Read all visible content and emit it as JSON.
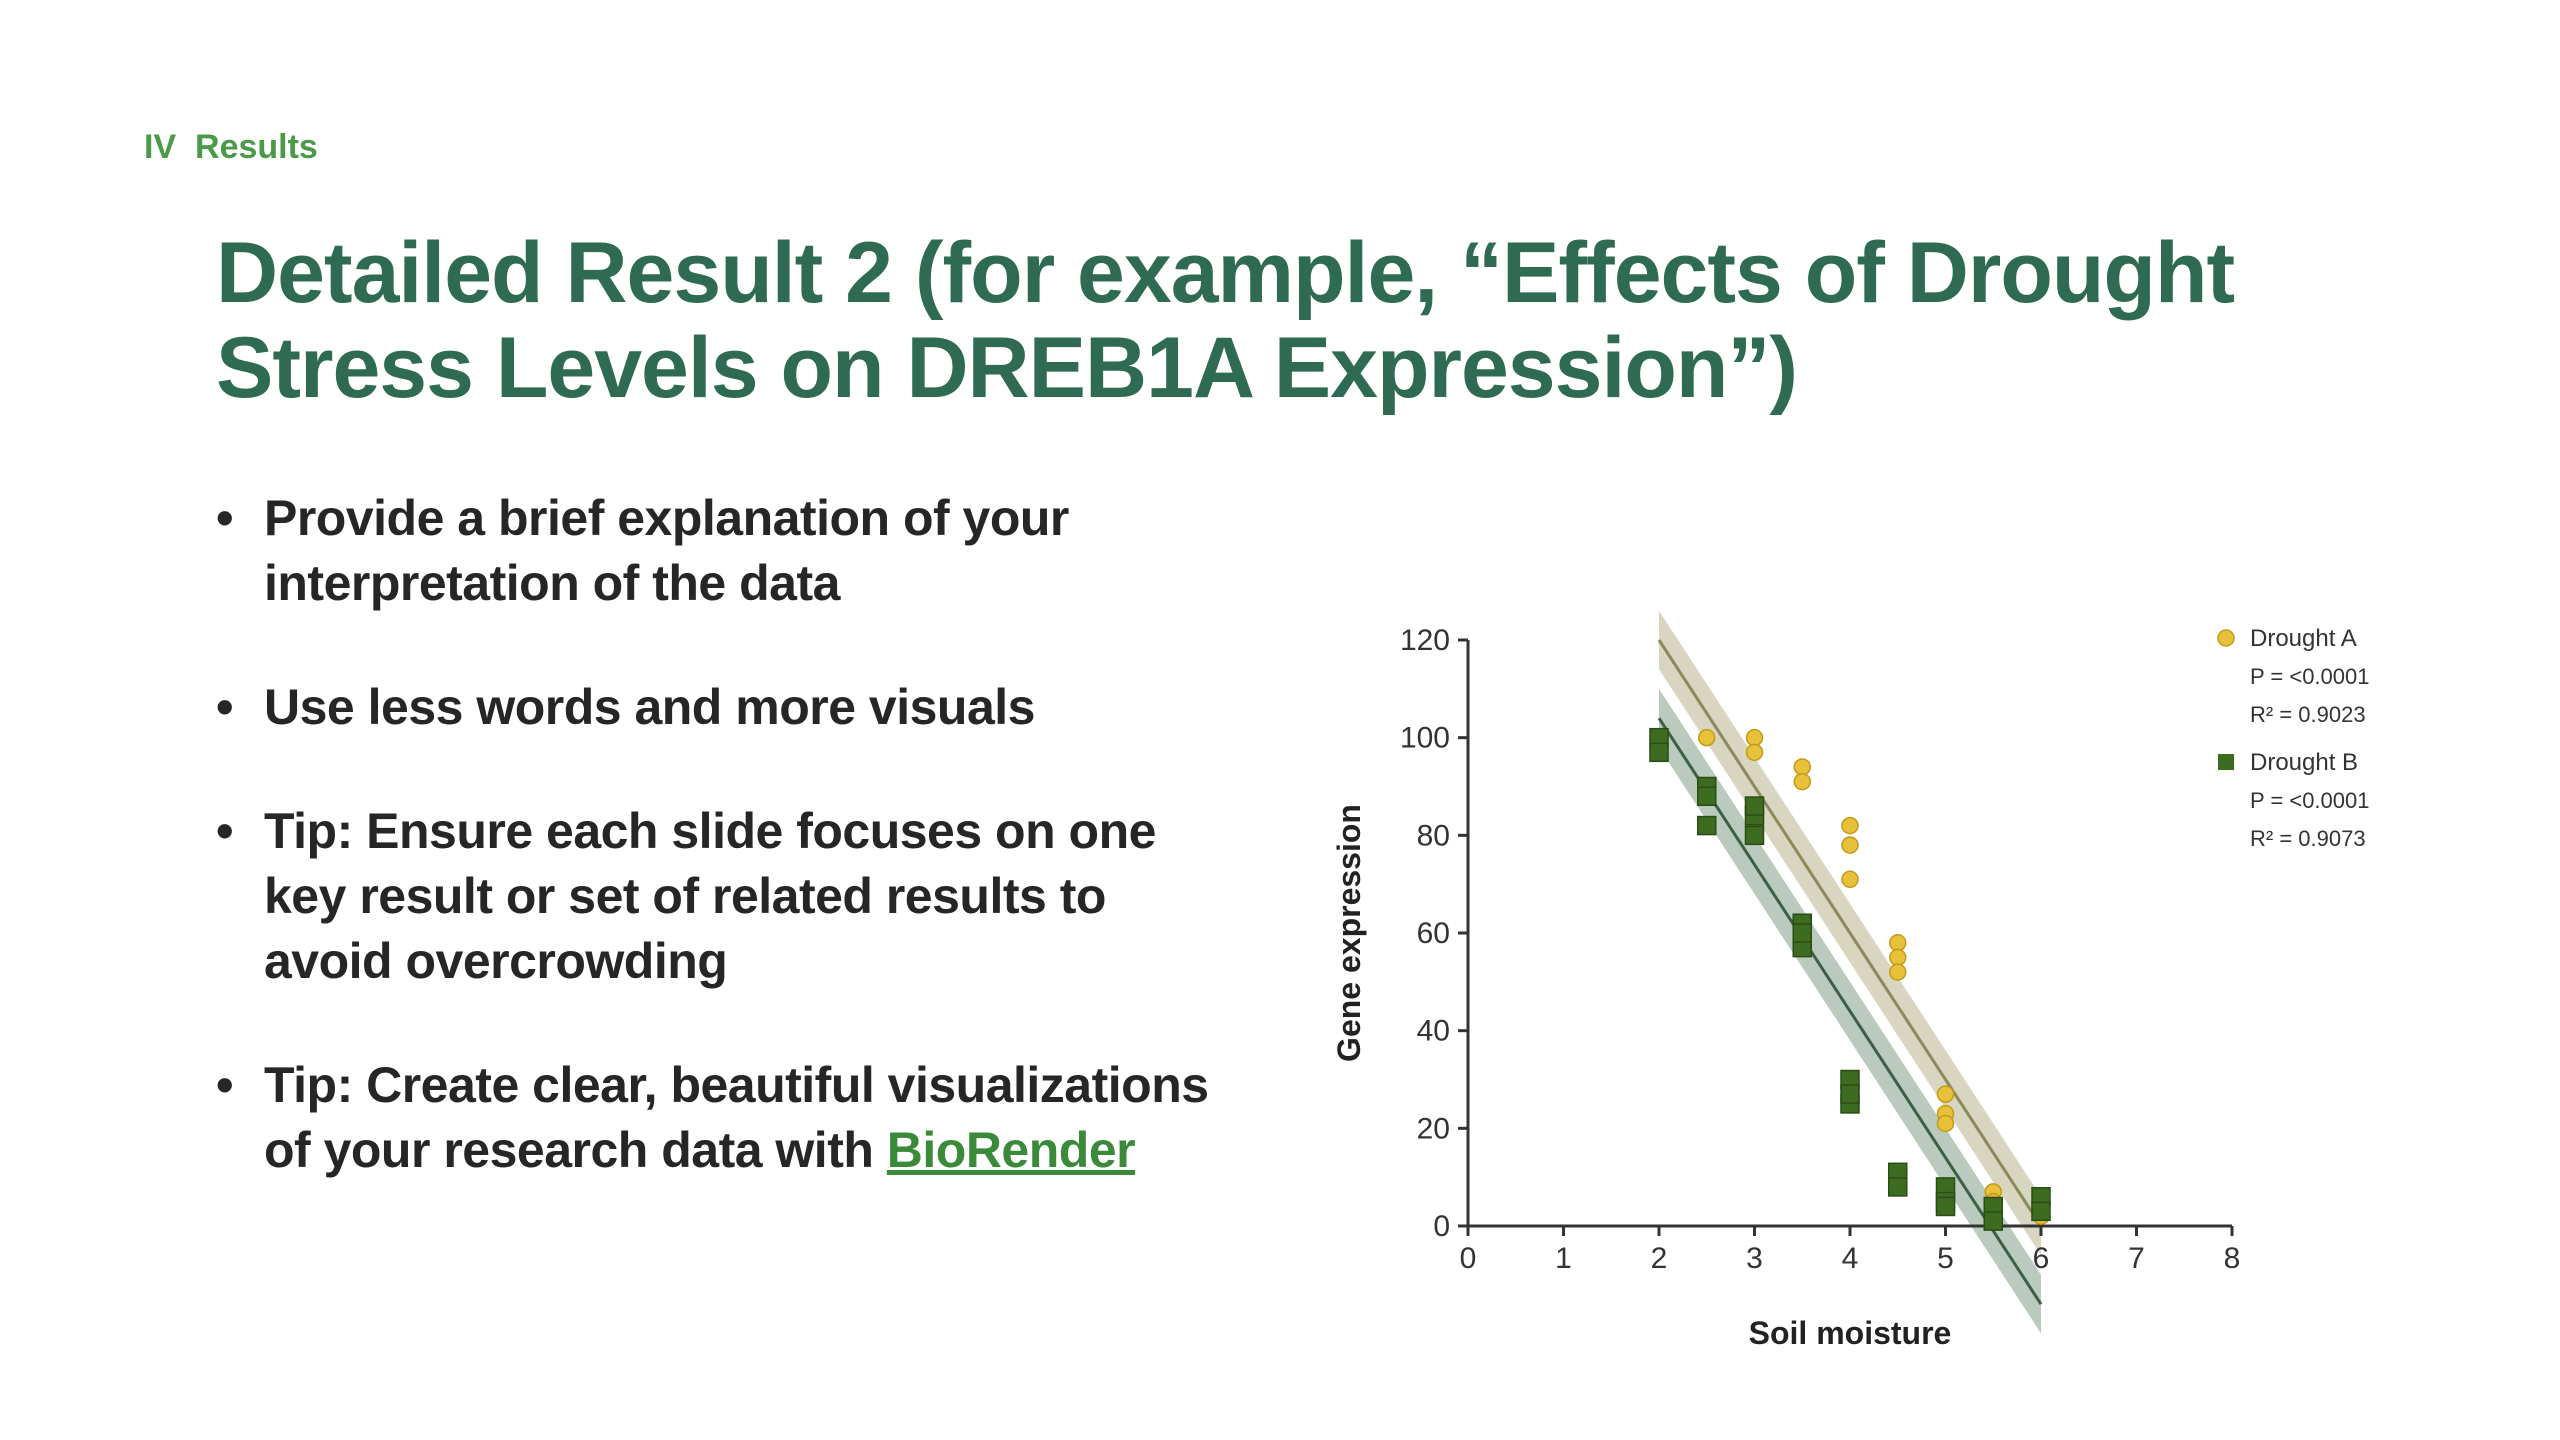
{
  "slide": {
    "section": "IV  Results",
    "title": "Detailed Result 2 (for example, “Effects of Drought Stress Levels on DREB1A Expression”)",
    "bullets": [
      {
        "text": "Provide a brief explanation of your interpretation of the data"
      },
      {
        "text": "Use less words and more visuals"
      },
      {
        "text": "Tip: Ensure each slide focuses on one key result or set of related results to avoid overcrowding"
      },
      {
        "text": "Tip: Create clear, beautiful visualizations of your research data with ",
        "link": "BioRender"
      }
    ]
  },
  "chart_data": {
    "type": "scatter",
    "title": "",
    "xlabel": "Soil moisture",
    "ylabel": "Gene expression",
    "xlim": [
      0,
      8
    ],
    "ylim": [
      0,
      120
    ],
    "xticks": [
      0,
      1,
      2,
      3,
      4,
      5,
      6,
      7,
      8
    ],
    "yticks": [
      0,
      20,
      40,
      60,
      80,
      100,
      120
    ],
    "grid": false,
    "legend_position": "top-right",
    "series": [
      {
        "name": "Drought A",
        "stats": [
          "P = <0.0001",
          "R² = 0.9023"
        ],
        "marker": "circle",
        "color": "#e8c13a",
        "fit_color": "#8a8a5a",
        "band_color": "#c8c4a6",
        "points": [
          {
            "x": 2,
            "y": 100
          },
          {
            "x": 2.5,
            "y": 100
          },
          {
            "x": 3,
            "y": 100
          },
          {
            "x": 3,
            "y": 97
          },
          {
            "x": 3.5,
            "y": 94
          },
          {
            "x": 3.5,
            "y": 91
          },
          {
            "x": 4,
            "y": 82
          },
          {
            "x": 4,
            "y": 78
          },
          {
            "x": 4,
            "y": 71
          },
          {
            "x": 4.5,
            "y": 58
          },
          {
            "x": 4.5,
            "y": 55
          },
          {
            "x": 4.5,
            "y": 52
          },
          {
            "x": 5,
            "y": 27
          },
          {
            "x": 5,
            "y": 23
          },
          {
            "x": 5,
            "y": 21
          },
          {
            "x": 5.5,
            "y": 7
          },
          {
            "x": 5.5,
            "y": 5
          },
          {
            "x": 6,
            "y": 4
          },
          {
            "x": 6,
            "y": 2
          }
        ],
        "fit": {
          "slope": -30,
          "intercept": 180
        },
        "ci_halfwidth": 6
      },
      {
        "name": "Drought B",
        "stats": [
          "P = <0.0001",
          "R² = 0.9073"
        ],
        "marker": "square",
        "color": "#3d6b1f",
        "fit_color": "#3f5f45",
        "band_color": "#9db4a3",
        "points": [
          {
            "x": 2,
            "y": 100
          },
          {
            "x": 2,
            "y": 97
          },
          {
            "x": 2.5,
            "y": 90
          },
          {
            "x": 2.5,
            "y": 88
          },
          {
            "x": 2.5,
            "y": 82
          },
          {
            "x": 3,
            "y": 84
          },
          {
            "x": 3,
            "y": 80
          },
          {
            "x": 3,
            "y": 86
          },
          {
            "x": 3.5,
            "y": 62
          },
          {
            "x": 3.5,
            "y": 57
          },
          {
            "x": 3.5,
            "y": 60
          },
          {
            "x": 4,
            "y": 30
          },
          {
            "x": 4,
            "y": 25
          },
          {
            "x": 4,
            "y": 27
          },
          {
            "x": 4.5,
            "y": 11
          },
          {
            "x": 4.5,
            "y": 8
          },
          {
            "x": 5,
            "y": 8
          },
          {
            "x": 5,
            "y": 5
          },
          {
            "x": 5,
            "y": 4
          },
          {
            "x": 5.5,
            "y": 4
          },
          {
            "x": 5.5,
            "y": 1
          },
          {
            "x": 6,
            "y": 6
          },
          {
            "x": 6,
            "y": 3
          }
        ],
        "fit": {
          "slope": -30,
          "intercept": 164
        },
        "ci_halfwidth": 6
      }
    ]
  }
}
